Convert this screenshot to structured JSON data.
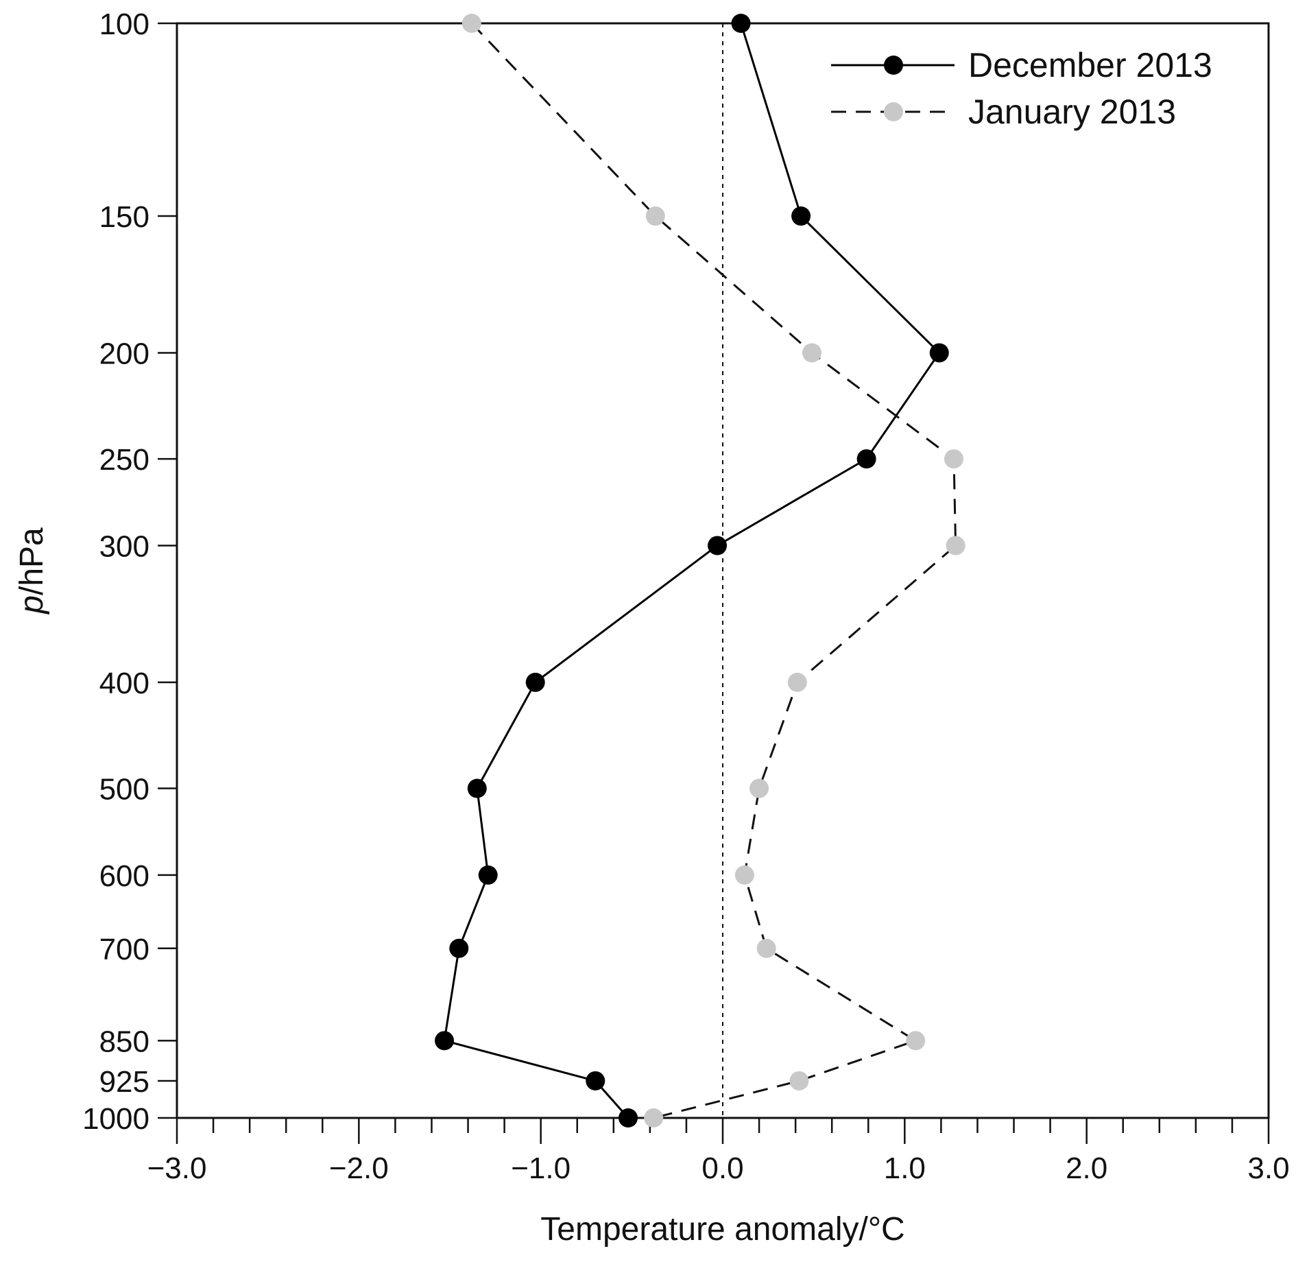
{
  "chart_data": {
    "type": "line",
    "xlabel": "Temperature anomaly/°C",
    "ylabel_italic": "p",
    "ylabel_rest": "/hPa",
    "xlim": [
      -3.0,
      3.0
    ],
    "ylim": [
      100,
      1000
    ],
    "y_scale": "log",
    "y_inverted": true,
    "x_ticks": [
      "−3.0",
      "−2.0",
      "−1.0",
      "0.0",
      "1.0",
      "2.0",
      "3.0"
    ],
    "x_tick_values": [
      -3.0,
      -2.0,
      -1.0,
      0.0,
      1.0,
      2.0,
      3.0
    ],
    "y_ticks": [
      100,
      150,
      200,
      250,
      300,
      400,
      500,
      600,
      700,
      850,
      925,
      1000
    ],
    "zero_reference_line": true,
    "legend_position": "top-right",
    "colors": {
      "december": "#000000",
      "january_marker": "#c8c8c8",
      "january_line": "#111111"
    },
    "series": [
      {
        "name": "December 2013",
        "style": "solid",
        "points": [
          {
            "p": 100,
            "t": 0.1
          },
          {
            "p": 150,
            "t": 0.43
          },
          {
            "p": 200,
            "t": 1.19
          },
          {
            "p": 250,
            "t": 0.79
          },
          {
            "p": 300,
            "t": -0.03
          },
          {
            "p": 400,
            "t": -1.03
          },
          {
            "p": 500,
            "t": -1.35
          },
          {
            "p": 600,
            "t": -1.29
          },
          {
            "p": 700,
            "t": -1.45
          },
          {
            "p": 850,
            "t": -1.53
          },
          {
            "p": 925,
            "t": -0.7
          },
          {
            "p": 1000,
            "t": -0.52
          }
        ]
      },
      {
        "name": "January 2013",
        "style": "dashed",
        "points": [
          {
            "p": 100,
            "t": -1.38
          },
          {
            "p": 150,
            "t": -0.37
          },
          {
            "p": 200,
            "t": 0.49
          },
          {
            "p": 250,
            "t": 1.27
          },
          {
            "p": 300,
            "t": 1.28
          },
          {
            "p": 400,
            "t": 0.41
          },
          {
            "p": 500,
            "t": 0.2
          },
          {
            "p": 600,
            "t": 0.12
          },
          {
            "p": 700,
            "t": 0.24
          },
          {
            "p": 850,
            "t": 1.06
          },
          {
            "p": 925,
            "t": 0.42
          },
          {
            "p": 1000,
            "t": -0.38
          }
        ]
      }
    ]
  }
}
